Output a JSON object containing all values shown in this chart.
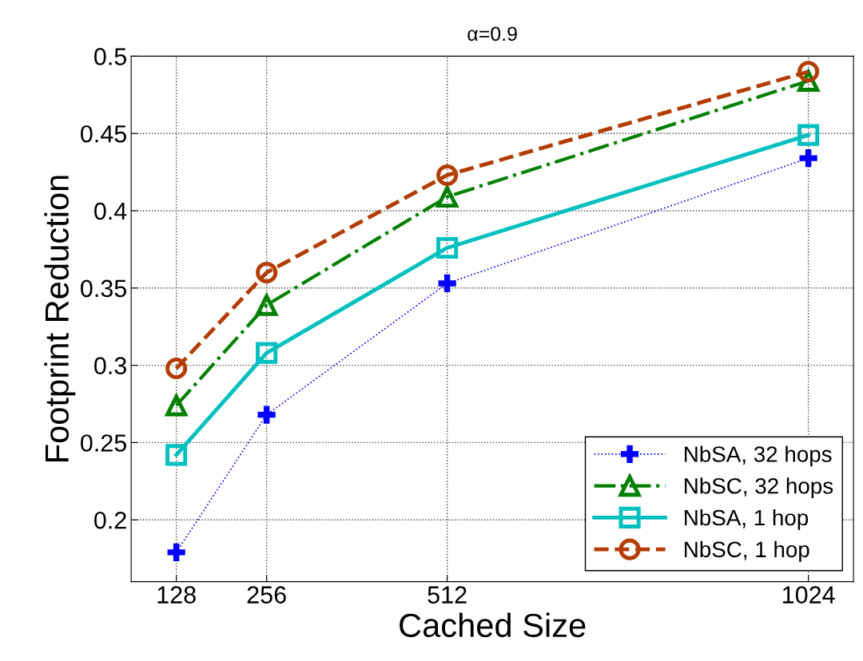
{
  "chart_data": {
    "type": "line",
    "title": "α=0.9",
    "xlabel": "Cached Size",
    "ylabel": "Footprint Reduction",
    "x": [
      128,
      256,
      512,
      1024
    ],
    "xlim": [
      64,
      1088
    ],
    "xticks": [
      128,
      256,
      512,
      1024
    ],
    "ylim": [
      0.16,
      0.5
    ],
    "yticks": [
      0.2,
      0.25,
      0.3,
      0.35,
      0.4,
      0.45,
      0.5
    ],
    "grid": true,
    "legend": "bottom right",
    "series": [
      {
        "name": "NbSA, 32 hops",
        "color": "#0000ff",
        "marker": "cross",
        "line_style": "dotted",
        "values": [
          0.179,
          0.268,
          0.353,
          0.434
        ]
      },
      {
        "name": "NbSC, 32 hops",
        "color": "#008000",
        "marker": "triangle",
        "line_style": "dashdot",
        "values": [
          0.274,
          0.339,
          0.409,
          0.484
        ]
      },
      {
        "name": "NbSA, 1 hop",
        "color": "#00bfbf",
        "marker": "square",
        "line_style": "solid",
        "values": [
          0.242,
          0.308,
          0.376,
          0.449
        ]
      },
      {
        "name": "NbSC, 1 hop",
        "color": "#b33c00",
        "marker": "circle",
        "line_style": "dashed",
        "values": [
          0.298,
          0.36,
          0.423,
          0.49
        ]
      }
    ]
  }
}
